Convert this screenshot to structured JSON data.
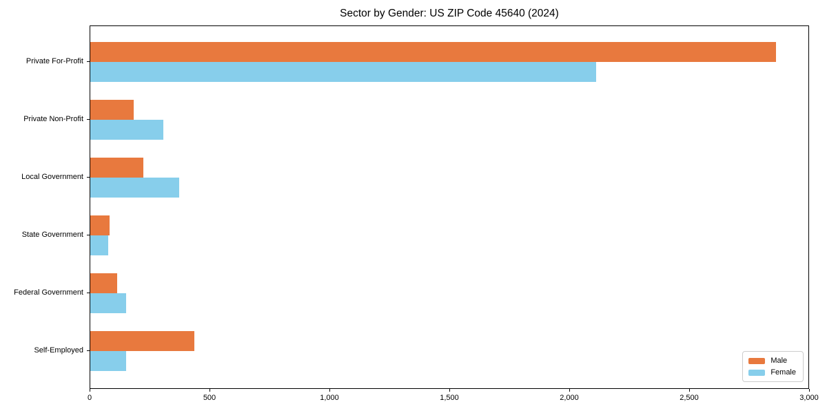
{
  "chart_data": {
    "type": "bar",
    "orientation": "horizontal",
    "title": "Sector by Gender: US ZIP Code 45640 (2024)",
    "categories": [
      "Private For-Profit",
      "Private Non-Profit",
      "Local Government",
      "State Government",
      "Federal Government",
      "Self-Employed"
    ],
    "series": [
      {
        "name": "Male",
        "color": "#E8793E",
        "values": [
          2860,
          180,
          222,
          80,
          112,
          435
        ]
      },
      {
        "name": "Female",
        "color": "#87CEEB",
        "values": [
          2110,
          305,
          370,
          75,
          150,
          150
        ]
      }
    ],
    "xlabel": "",
    "ylabel": "",
    "xlim": [
      0,
      3000
    ],
    "xticks": [
      0,
      500,
      1000,
      1500,
      2000,
      2500,
      3000
    ],
    "xtick_labels": [
      "0",
      "500",
      "1,000",
      "1,500",
      "2,000",
      "2,500",
      "3,000"
    ],
    "grid": false,
    "legend": {
      "position": "lower right",
      "entries": [
        "Male",
        "Female"
      ]
    },
    "axis_color": "#000000",
    "background_color": "#ffffff"
  }
}
